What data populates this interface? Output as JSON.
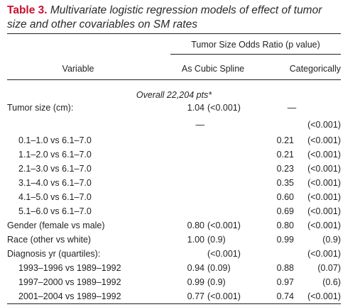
{
  "caption": {
    "label": "Table 3.",
    "text": "Multivariate logistic regression models of effect of tumor size and other covariables on SM rates"
  },
  "header": {
    "group": "Tumor Size Odds Ratio (p value)",
    "variable": "Variable",
    "col1": "As Cubic Spline",
    "col2": "Categorically"
  },
  "section": "Overall 22,204 pts*",
  "rows": [
    {
      "label": "Tumor size (cm):",
      "c1a": "1.04",
      "c1b": "(<0.001)",
      "c2a": "—",
      "c2b": ""
    },
    {
      "label": "",
      "c1a": "—",
      "c1b": "",
      "c2a": "",
      "c2b": "(<0.001)"
    },
    {
      "label": "0.1–1.0 vs 6.1–7.0",
      "c1a": "",
      "c1b": "",
      "c2a": "0.21",
      "c2b": "(<0.001)"
    },
    {
      "label": "1.1–2.0 vs 6.1–7.0",
      "c1a": "",
      "c1b": "",
      "c2a": "0.21",
      "c2b": "(<0.001)"
    },
    {
      "label": "2.1–3.0 vs 6.1–7.0",
      "c1a": "",
      "c1b": "",
      "c2a": "0.23",
      "c2b": "(<0.001)"
    },
    {
      "label": "3.1–4.0 vs 6.1–7.0",
      "c1a": "",
      "c1b": "",
      "c2a": "0.35",
      "c2b": "(<0.001)"
    },
    {
      "label": "4.1–5.0 vs 6.1–7.0",
      "c1a": "",
      "c1b": "",
      "c2a": "0.60",
      "c2b": "(<0.001)"
    },
    {
      "label": "5.1–6.0 vs 6.1–7.0",
      "c1a": "",
      "c1b": "",
      "c2a": "0.69",
      "c2b": "(<0.001)"
    },
    {
      "label": "Gender (female vs male)",
      "c1a": "0.80",
      "c1b": "(<0.001)",
      "c2a": "0.80",
      "c2b": "(<0.001)"
    },
    {
      "label": "Race (other vs white)",
      "c1a": "1.00",
      "c1b": "(0.9)",
      "c2a": "0.99",
      "c2b": "(0.9)"
    },
    {
      "label": "Diagnosis yr (quartiles):",
      "c1a": "",
      "c1b": "(<0.001)",
      "c2a": "",
      "c2b": "(<0.001)"
    },
    {
      "label": "1993–1996 vs 1989–1992",
      "c1a": "0.94",
      "c1b": "(0.09)",
      "c2a": "0.88",
      "c2b": "(0.07)"
    },
    {
      "label": "1997–2000 vs 1989–1992",
      "c1a": "0.99",
      "c1b": "(0.9)",
      "c2a": "0.97",
      "c2b": "(0.6)"
    },
    {
      "label": "2001–2004 vs 1989–1992",
      "c1a": "0.77",
      "c1b": "(<0.001)",
      "c2a": "0.74",
      "c2b": "(<0.001)"
    }
  ]
}
